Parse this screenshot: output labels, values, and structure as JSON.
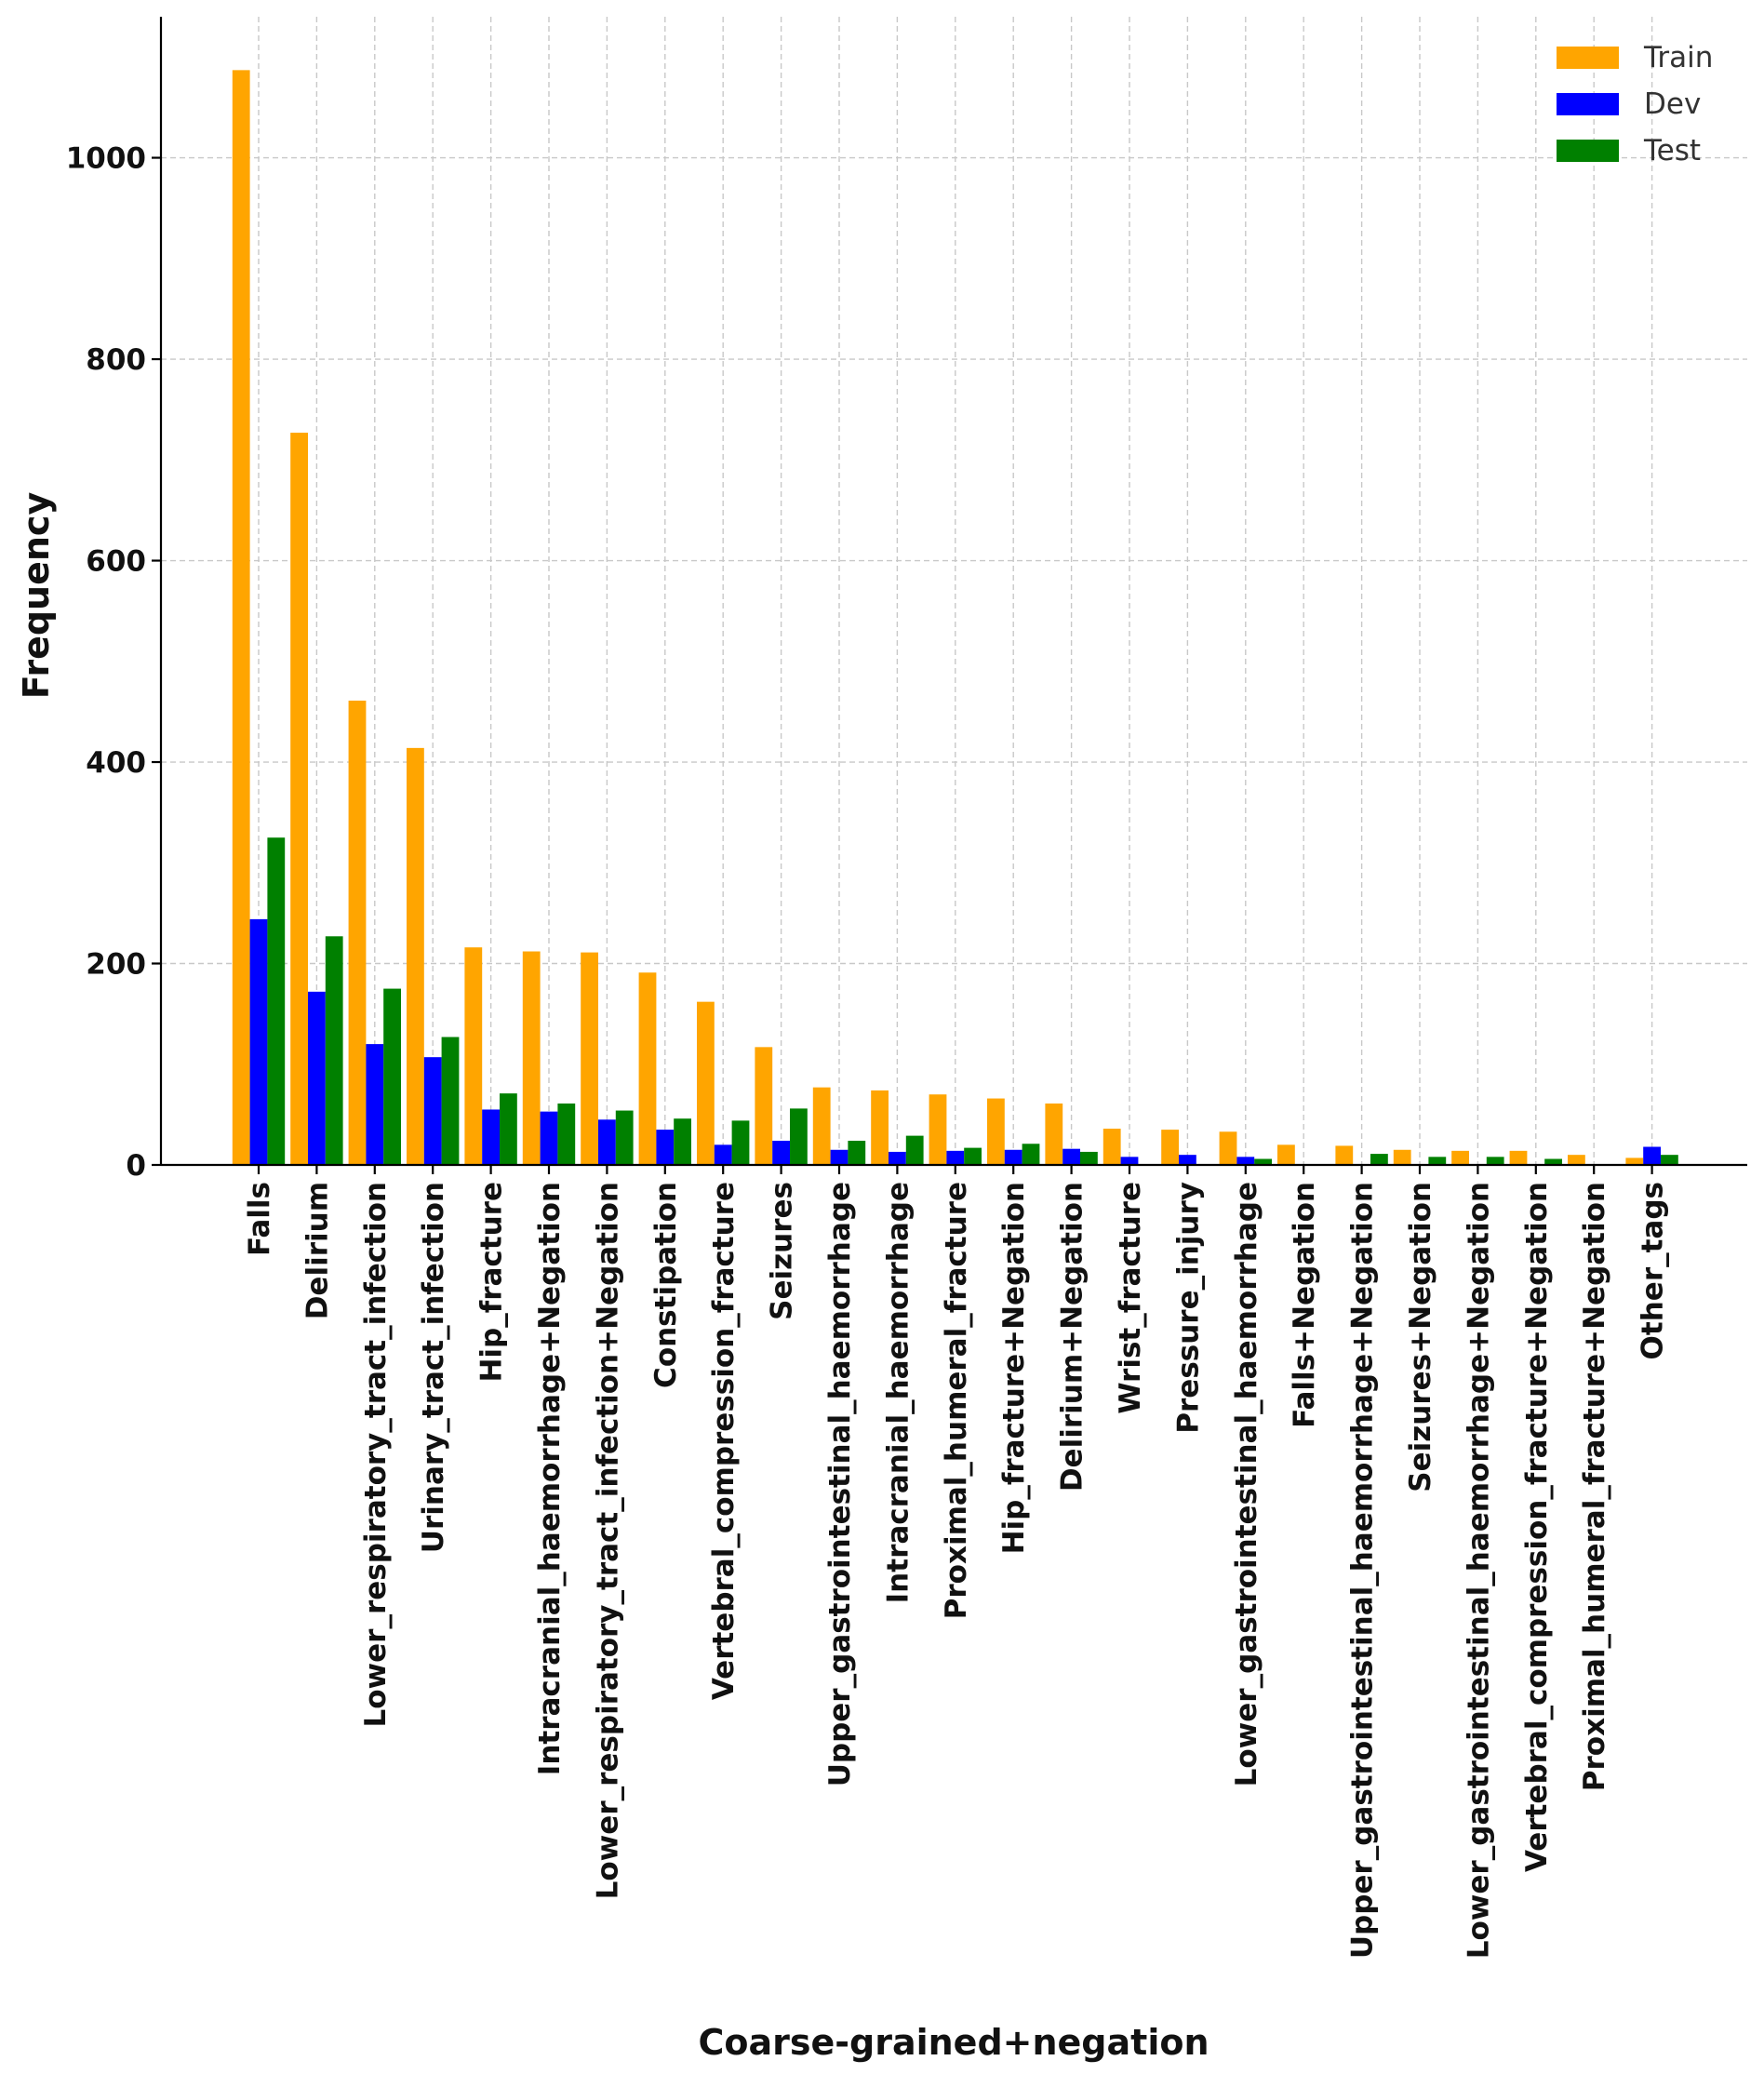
{
  "chart_data": {
    "type": "bar",
    "title": "",
    "xlabel": "Coarse-grained+negation",
    "ylabel": "Frequency",
    "ylim": [
      0,
      1140
    ],
    "yticks": [
      0,
      200,
      400,
      600,
      800,
      1000
    ],
    "grid": true,
    "legend_position": "top-right",
    "categories": [
      "Falls",
      "Delirium",
      "Lower_respiratory_tract_infection",
      "Urinary_tract_infection",
      "Hip_fracture",
      "Intracranial_haemorrhage+Negation",
      "Lower_respiratory_tract_infection+Negation",
      "Constipation",
      "Vertebral_compression_fracture",
      "Seizures",
      "Upper_gastrointestinal_haemorrhage",
      "Intracranial_haemorrhage",
      "Proximal_humeral_fracture",
      "Hip_fracture+Negation",
      "Delirium+Negation",
      "Wrist_fracture",
      "Pressure_injury",
      "Lower_gastrointestinal_haemorrhage",
      "Falls+Negation",
      "Upper_gastrointestinal_haemorrhage+Negation",
      "Seizures+Negation",
      "Lower_gastrointestinal_haemorrhage+Negation",
      "Vertebral_compression_fracture+Negation",
      "Proximal_humeral_fracture+Negation",
      "Other_tags"
    ],
    "series": [
      {
        "name": "Train",
        "color": "#FFA500",
        "values": [
          1087,
          727,
          461,
          414,
          216,
          212,
          211,
          191,
          162,
          117,
          77,
          74,
          70,
          66,
          61,
          36,
          35,
          33,
          20,
          19,
          15,
          14,
          14,
          10,
          7
        ]
      },
      {
        "name": "Dev",
        "color": "#0000FF",
        "values": [
          244,
          172,
          120,
          107,
          55,
          53,
          45,
          35,
          20,
          24,
          15,
          13,
          14,
          15,
          16,
          8,
          10,
          8,
          0,
          0,
          0,
          0,
          0,
          0,
          18
        ]
      },
      {
        "name": "Test",
        "color": "#008000",
        "values": [
          325,
          227,
          175,
          127,
          71,
          61,
          54,
          46,
          44,
          56,
          24,
          29,
          17,
          21,
          13,
          0,
          0,
          6,
          0,
          11,
          8,
          8,
          6,
          0,
          10
        ]
      }
    ]
  }
}
